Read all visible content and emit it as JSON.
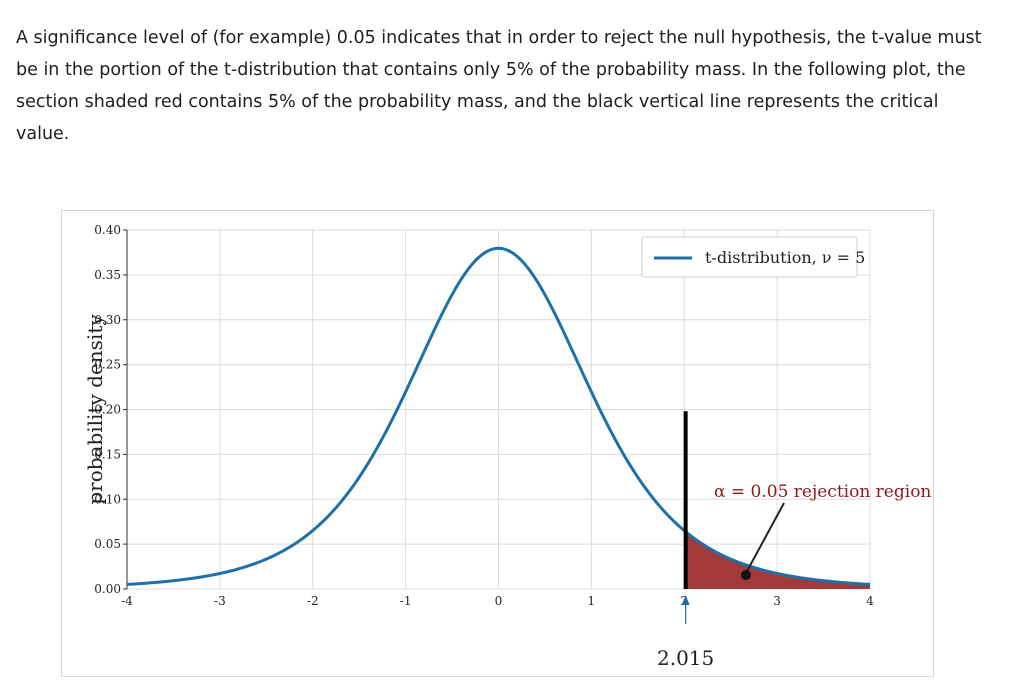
{
  "intro_paragraph": "A significance level of (for example) 0.05 indicates that in order to reject the null hypothesis, the t-value must be in the portion of the t-distribution that contains only 5% of the probability mass. In the following plot, the section shaded red contains 5% of the probability mass, and the black vertical line represents the critical value.",
  "chart_data": {
    "type": "line",
    "title": "",
    "xlabel": "",
    "ylabel": "probability density",
    "xlim": [
      -4,
      4
    ],
    "ylim": [
      0,
      0.4
    ],
    "grid": true,
    "legend_placement": "top-right",
    "x_ticks": [
      "-4",
      "-3",
      "-2",
      "-1",
      "0",
      "1",
      "2",
      "3",
      "4"
    ],
    "y_ticks": [
      "0.00",
      "0.05",
      "0.10",
      "0.15",
      "0.20",
      "0.25",
      "0.30",
      "0.35",
      "0.40"
    ],
    "series": [
      {
        "name": "t-distribution, ν = 5",
        "color": "#1f6fa8",
        "x": [
          -4,
          -3.5,
          -3,
          -2.5,
          -2,
          -1.5,
          -1,
          -0.5,
          0,
          0.5,
          1,
          1.5,
          2,
          2.5,
          3,
          3.5,
          4
        ],
        "y": [
          0.005,
          0.009,
          0.017,
          0.034,
          0.065,
          0.124,
          0.22,
          0.333,
          0.38,
          0.333,
          0.22,
          0.124,
          0.065,
          0.034,
          0.017,
          0.009,
          0.005
        ]
      }
    ],
    "critical_value": 2.015,
    "critical_value_label": "2.015",
    "critical_line_color": "#000000",
    "shaded_region": {
      "from": 2.015,
      "to": 4,
      "color": "#a33a3a"
    },
    "annotation": "α = 0.05 rejection region",
    "curve_color": "#1f6fa8"
  }
}
